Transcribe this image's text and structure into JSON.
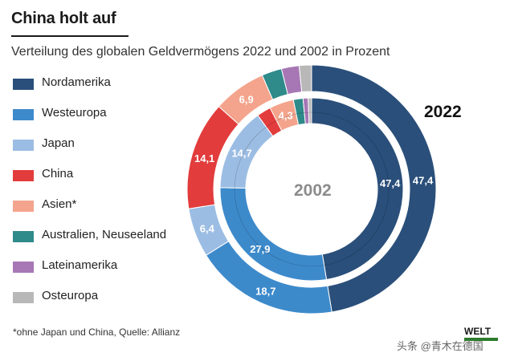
{
  "header": {
    "title": "China holt auf",
    "subtitle": "Verteilung des globalen Geldvermögens 2022 und 2002 in Prozent"
  },
  "footnote": "*ohne Japan und China, Quelle: Allianz",
  "logo": "WELT",
  "watermark": "头条 @青木在德国",
  "chart_data": {
    "type": "pie",
    "subtype": "nested-donut",
    "title": "China holt auf",
    "legend_position": "left",
    "categories": [
      "Nordamerika",
      "Westeuropa",
      "Japan",
      "China",
      "Asien*",
      "Australien, Neuseeland",
      "Lateinamerika",
      "Osteuropa"
    ],
    "colors": [
      "#2a4f7a",
      "#3d8acb",
      "#9cbde3",
      "#e23c3c",
      "#f4a48c",
      "#2f8a8a",
      "#a777b5",
      "#b8b8b8"
    ],
    "series": [
      {
        "name": "2022",
        "ring": "outer",
        "values": [
          47.4,
          18.7,
          6.4,
          14.1,
          6.9,
          2.6,
          2.3,
          1.6
        ],
        "labels": [
          "47,4",
          "18,7",
          "6,4",
          "14,1",
          "6,9",
          "",
          "",
          ""
        ]
      },
      {
        "name": "2002",
        "ring": "inner",
        "values": [
          47.4,
          27.9,
          14.7,
          2.5,
          4.3,
          1.7,
          0.9,
          0.6
        ],
        "labels": [
          "47,4",
          "27,9",
          "14,7",
          "",
          "4,3",
          "",
          "",
          ""
        ]
      }
    ]
  }
}
